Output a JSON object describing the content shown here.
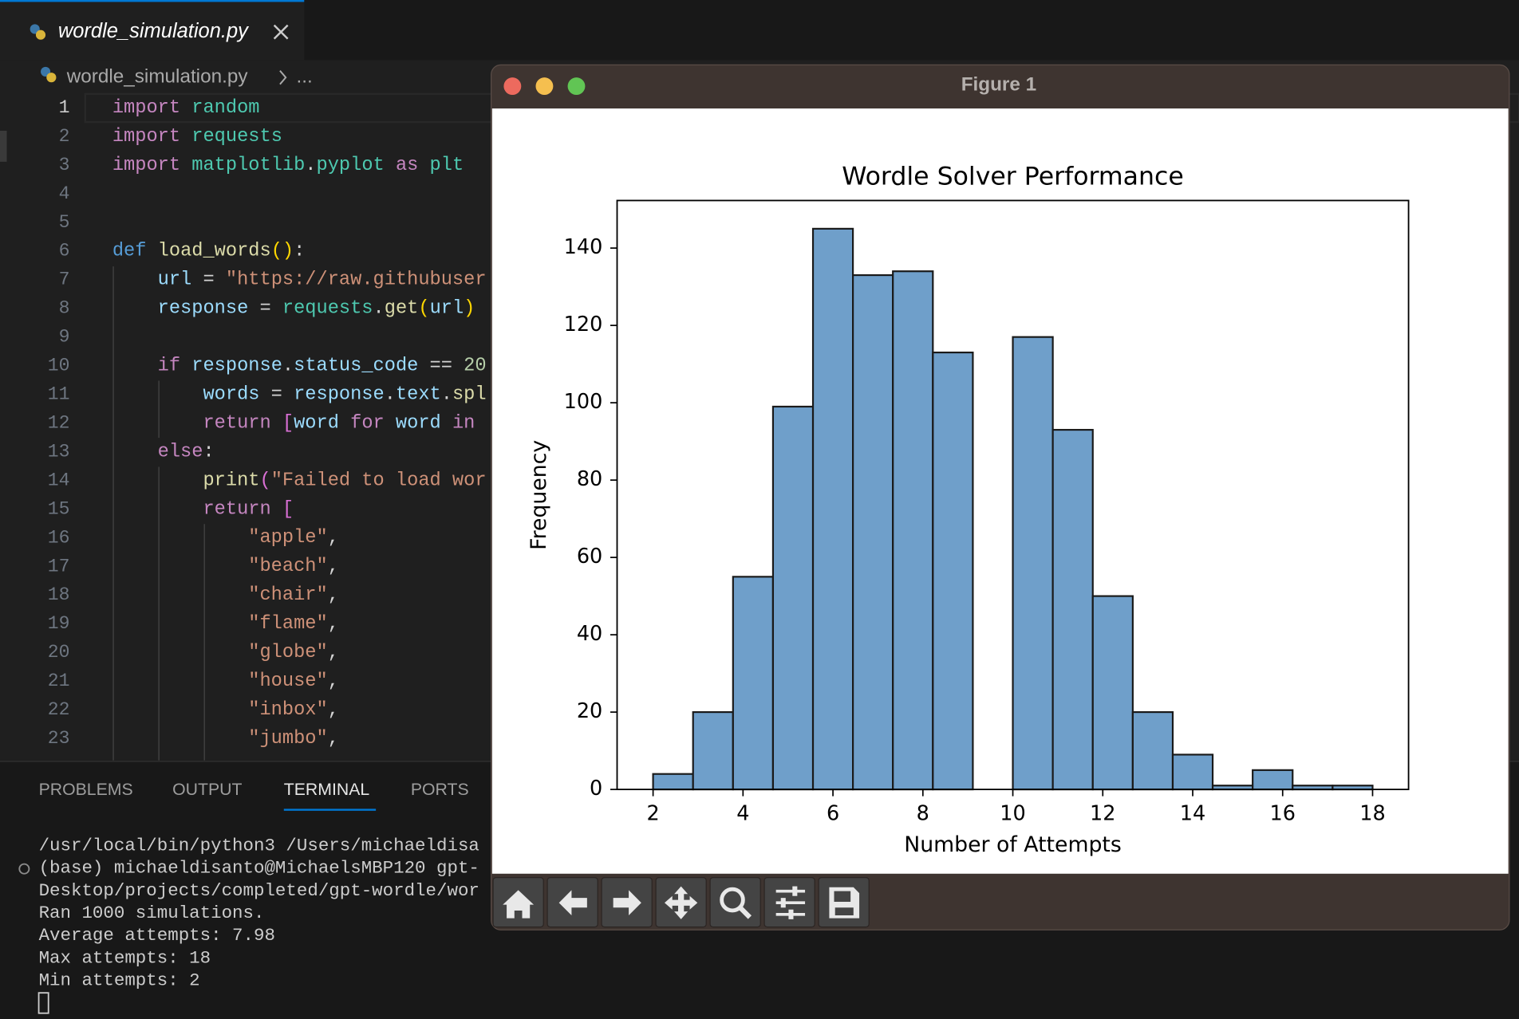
{
  "tab": {
    "title": "wordle_simulation.py"
  },
  "breadcrumb": {
    "file": "wordle_simulation.py",
    "more": "..."
  },
  "editor": {
    "line_numbers": [
      1,
      2,
      3,
      4,
      5,
      6,
      7,
      8,
      9,
      10,
      11,
      12,
      13,
      14,
      15,
      16,
      17,
      18,
      19,
      20,
      21,
      22,
      23
    ],
    "lines": [
      [
        [
          "import ",
          "#c586c0"
        ],
        [
          "random",
          "#4ec9b0"
        ]
      ],
      [
        [
          "import ",
          "#c586c0"
        ],
        [
          "requests",
          "#4ec9b0"
        ]
      ],
      [
        [
          "import ",
          "#c586c0"
        ],
        [
          "matplotlib",
          "#4ec9b0"
        ],
        [
          ".",
          "#d4d4d4"
        ],
        [
          "pyplot",
          "#4ec9b0"
        ],
        [
          " as ",
          "#c586c0"
        ],
        [
          "plt",
          "#4ec9b0"
        ]
      ],
      [],
      [],
      [
        [
          "def ",
          "#569cd6"
        ],
        [
          "load_words",
          "#dcdcaa"
        ],
        [
          "()",
          "#ffd700"
        ],
        [
          ":",
          "#d4d4d4"
        ]
      ],
      [
        [
          "    url",
          "#9cdcfe"
        ],
        [
          " = ",
          "#d4d4d4"
        ],
        [
          "\"https://raw.githubuser",
          "#ce9178"
        ]
      ],
      [
        [
          "    response",
          "#9cdcfe"
        ],
        [
          " = ",
          "#d4d4d4"
        ],
        [
          "requests",
          "#4ec9b0"
        ],
        [
          ".",
          "#d4d4d4"
        ],
        [
          "get",
          "#dcdcaa"
        ],
        [
          "(",
          "#ffd700"
        ],
        [
          "url",
          "#9cdcfe"
        ],
        [
          ")",
          "#ffd700"
        ]
      ],
      [],
      [
        [
          "    if ",
          "#c586c0"
        ],
        [
          "response",
          "#9cdcfe"
        ],
        [
          ".",
          "#d4d4d4"
        ],
        [
          "status_code",
          "#9cdcfe"
        ],
        [
          " == ",
          "#d4d4d4"
        ],
        [
          "20",
          "#b5cea8"
        ]
      ],
      [
        [
          "        words",
          "#9cdcfe"
        ],
        [
          " = ",
          "#d4d4d4"
        ],
        [
          "response",
          "#9cdcfe"
        ],
        [
          ".",
          "#d4d4d4"
        ],
        [
          "text",
          "#9cdcfe"
        ],
        [
          ".",
          "#d4d4d4"
        ],
        [
          "spl",
          "#dcdcaa"
        ]
      ],
      [
        [
          "        return ",
          "#c586c0"
        ],
        [
          "[",
          "#da70d6"
        ],
        [
          "word ",
          "#9cdcfe"
        ],
        [
          "for ",
          "#c586c0"
        ],
        [
          "word ",
          "#9cdcfe"
        ],
        [
          "in ",
          "#c586c0"
        ]
      ],
      [
        [
          "    else",
          "#c586c0"
        ],
        [
          ":",
          "#d4d4d4"
        ]
      ],
      [
        [
          "        print",
          "#dcdcaa"
        ],
        [
          "(",
          "#da70d6"
        ],
        [
          "\"Failed to load wor",
          "#ce9178"
        ]
      ],
      [
        [
          "        return ",
          "#c586c0"
        ],
        [
          "[",
          "#da70d6"
        ]
      ],
      [
        [
          "            \"apple\"",
          "#ce9178"
        ],
        [
          ",",
          "#d4d4d4"
        ]
      ],
      [
        [
          "            \"beach\"",
          "#ce9178"
        ],
        [
          ",",
          "#d4d4d4"
        ]
      ],
      [
        [
          "            \"chair\"",
          "#ce9178"
        ],
        [
          ",",
          "#d4d4d4"
        ]
      ],
      [
        [
          "            \"flame\"",
          "#ce9178"
        ],
        [
          ",",
          "#d4d4d4"
        ]
      ],
      [
        [
          "            \"globe\"",
          "#ce9178"
        ],
        [
          ",",
          "#d4d4d4"
        ]
      ],
      [
        [
          "            \"house\"",
          "#ce9178"
        ],
        [
          ",",
          "#d4d4d4"
        ]
      ],
      [
        [
          "            \"inbox\"",
          "#ce9178"
        ],
        [
          ",",
          "#d4d4d4"
        ]
      ],
      [
        [
          "            \"jumbo\"",
          "#ce9178"
        ],
        [
          ",",
          "#d4d4d4"
        ]
      ]
    ]
  },
  "panel": {
    "tabs": [
      "PROBLEMS",
      "OUTPUT",
      "TERMINAL",
      "PORTS"
    ]
  },
  "terminal": {
    "lines": [
      "/usr/local/bin/python3 /Users/michaeldisa",
      "(base) michaeldisanto@MichaelsMBP120 gpt-",
      "Desktop/projects/completed/gpt-wordle/wor",
      "Ran 1000 simulations.",
      "Average attempts: 7.98",
      "Max attempts: 18",
      "Min attempts: 2"
    ]
  },
  "window": {
    "title": "Figure 1"
  },
  "chart_data": {
    "type": "histogram",
    "title": "Wordle Solver Performance",
    "xlabel": "Number of Attempts",
    "ylabel": "Frequency",
    "bins": [
      2,
      2.889,
      3.778,
      4.667,
      5.556,
      6.444,
      7.333,
      8.222,
      9.111,
      10,
      10.889,
      11.778,
      12.667,
      13.556,
      14.444,
      15.333,
      16.222,
      17.111,
      18
    ],
    "values": [
      4,
      20,
      55,
      99,
      145,
      133,
      134,
      113,
      0,
      117,
      93,
      50,
      20,
      9,
      1,
      5,
      1,
      1
    ],
    "color": "#6f9fca",
    "edgecolor": "#1a1a1a",
    "xlim": [
      1.2,
      18.8
    ],
    "ylim": [
      0,
      152.3
    ],
    "xticks": [
      2,
      4,
      6,
      8,
      10,
      12,
      14,
      16,
      18
    ],
    "yticks": [
      0,
      20,
      40,
      60,
      80,
      100,
      120,
      140
    ]
  }
}
